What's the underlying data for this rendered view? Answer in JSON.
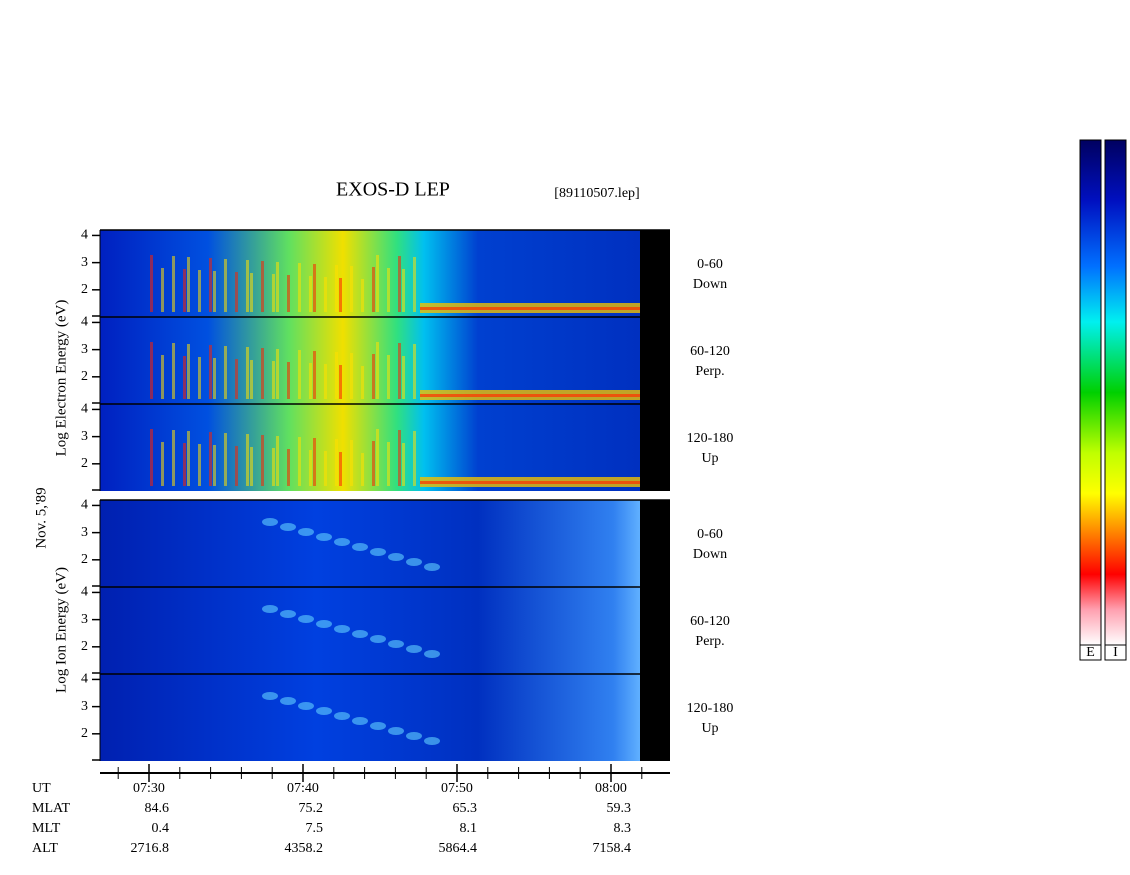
{
  "title": "EXOS-D LEP",
  "file": "[89110507.lep]",
  "date": "Nov. 5,'89",
  "electron": {
    "ylabel": "Log Electron Energy (eV)",
    "panels": [
      {
        "angle": "0-60",
        "dir": "Down"
      },
      {
        "angle": "60-120",
        "dir": "Perp."
      },
      {
        "angle": "120-180",
        "dir": "Up"
      }
    ]
  },
  "ion": {
    "ylabel": "Log Ion Energy (eV)",
    "panels": [
      {
        "angle": "0-60",
        "dir": "Down"
      },
      {
        "angle": "60-120",
        "dir": "Perp."
      },
      {
        "angle": "120-180",
        "dir": "Up"
      }
    ]
  },
  "ylim": [
    1,
    4.2
  ],
  "yticks": [
    2,
    3,
    4
  ],
  "ephemeris": {
    "labels": [
      "UT",
      "MLAT",
      "MLT",
      "ALT"
    ],
    "columns": [
      [
        "07:30",
        "84.6",
        "0.4",
        "2716.8"
      ],
      [
        "07:40",
        "75.2",
        "7.5",
        "4358.2"
      ],
      [
        "07:50",
        "65.3",
        "8.1",
        "5864.4"
      ],
      [
        "08:00",
        "59.3",
        "8.3",
        "7158.4"
      ]
    ]
  },
  "colorbars": [
    "E",
    "I"
  ]
}
